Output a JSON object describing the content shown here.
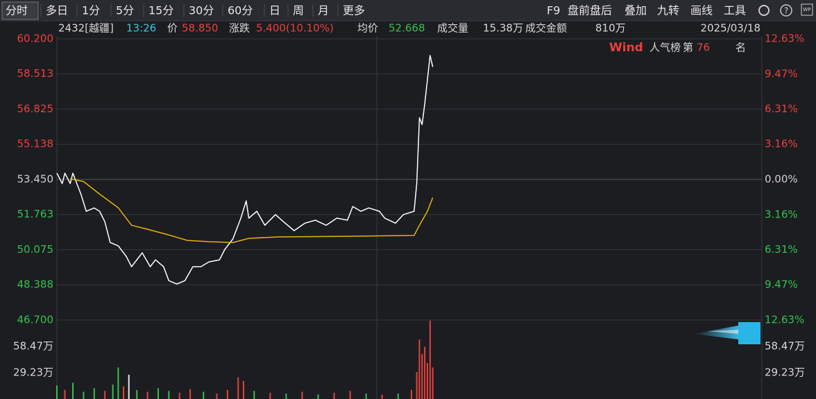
{
  "toolbar": {
    "tabs": [
      "分时",
      "多日",
      "1分",
      "5分",
      "15分",
      "30分",
      "60分",
      "日",
      "周",
      "月",
      "更多"
    ],
    "tools": [
      "F9",
      "盘前盘后",
      "叠加",
      "九转",
      "画线",
      "工具"
    ]
  },
  "info": {
    "code": "2432[越疆]",
    "time": "13:26",
    "price_label": "价",
    "price": "58.850",
    "change_label": "涨跌",
    "change": "5.400(10.10%)",
    "avg_label": "均价",
    "avg": "52.668",
    "volume_label": "成交量",
    "volume": "15.38万",
    "amount_label": "成交金额",
    "amount": "810万",
    "date": "2025/03/18"
  },
  "rank": {
    "brand": "Wind",
    "name": "人气榜",
    "prefix": "第",
    "rank": "76",
    "suffix": "名"
  },
  "chart_data": [
    {
      "type": "line",
      "xlim": [
        0,
        240
      ],
      "ylim": [
        46.7,
        60.2
      ],
      "yticks": [
        {
          "value": 60.2,
          "label": "60.200"
        },
        {
          "value": 58.513,
          "label": "58.513"
        },
        {
          "value": 56.825,
          "label": "56.825"
        },
        {
          "value": 55.138,
          "label": "55.138"
        },
        {
          "value": 53.45,
          "label": "53.450"
        },
        {
          "value": 51.763,
          "label": "51.763"
        },
        {
          "value": 50.075,
          "label": "50.075"
        },
        {
          "value": 48.388,
          "label": "48.388"
        },
        {
          "value": 46.7,
          "label": "46.700"
        }
      ],
      "y2lim": [
        -12.63,
        12.63
      ],
      "y2ticks": [
        {
          "value": 12.63,
          "label": "12.63%"
        },
        {
          "value": 9.47,
          "label": "9.47%"
        },
        {
          "value": 6.31,
          "label": "6.31%"
        },
        {
          "value": 3.16,
          "label": "3.16%"
        },
        {
          "value": 0,
          "label": "0.00%"
        },
        {
          "value": -3.16,
          "label": "3.16%"
        },
        {
          "value": -6.31,
          "label": "6.31%"
        },
        {
          "value": -9.47,
          "label": "9.47%"
        },
        {
          "value": -12.63,
          "label": "12.63%"
        }
      ],
      "grid": true,
      "up_color": "#e8413c",
      "down_color": "#35c04f",
      "series": [
        {
          "color": "#ffffff",
          "x": [
            0,
            2,
            3,
            5,
            6,
            8,
            9,
            11,
            14,
            16,
            18,
            20,
            23,
            26,
            28,
            31,
            32,
            35,
            37,
            40,
            42,
            45,
            48,
            51,
            54,
            57,
            61,
            63,
            66,
            69,
            71,
            72,
            75,
            78,
            82,
            85,
            89,
            93,
            97,
            101,
            105,
            109,
            111,
            114,
            117,
            121,
            123,
            127,
            130,
            134,
            135,
            136,
            137,
            138,
            139,
            140,
            141
          ],
          "values": [
            53.75,
            53.25,
            53.75,
            53.25,
            53.75,
            53.08,
            52.75,
            51.92,
            52.08,
            51.92,
            51.42,
            50.42,
            50.26,
            49.76,
            49.26,
            49.76,
            49.93,
            49.26,
            49.59,
            49.26,
            48.59,
            48.43,
            48.59,
            49.26,
            49.26,
            49.49,
            49.59,
            50.09,
            50.59,
            51.59,
            52.42,
            51.59,
            51.92,
            51.25,
            51.76,
            51.42,
            50.99,
            51.35,
            51.49,
            51.25,
            51.59,
            51.49,
            52.15,
            51.92,
            52.08,
            51.92,
            51.59,
            51.35,
            51.76,
            51.92,
            53.25,
            56.41,
            56.08,
            57.07,
            58.24,
            59.4,
            58.85
          ]
        },
        {
          "color": "#e8b400",
          "x": [
            5,
            10,
            16,
            23,
            28,
            33,
            41,
            49,
            57,
            66,
            72,
            83,
            109,
            134,
            136,
            139,
            141
          ],
          "values": [
            53.48,
            53.35,
            52.75,
            52.09,
            51.25,
            51.09,
            50.82,
            50.52,
            50.46,
            50.42,
            50.62,
            50.69,
            50.72,
            50.76,
            51.25,
            51.92,
            52.58
          ]
        }
      ]
    },
    {
      "type": "bar",
      "xlim": [
        0,
        240
      ],
      "ylim": [
        0,
        87.7
      ],
      "yticks": [
        {
          "value": 58.47,
          "label": "58.47万"
        },
        {
          "value": 29.23,
          "label": "29.23万"
        }
      ],
      "grid": false,
      "x": [
        0,
        3,
        6,
        10,
        14,
        18,
        21,
        23,
        25,
        27,
        30,
        34,
        38,
        42,
        46,
        50,
        55,
        60,
        64,
        68,
        70,
        74,
        80,
        86,
        92,
        98,
        104,
        110,
        116,
        122,
        128,
        133,
        135,
        136,
        137,
        138,
        139,
        140,
        141
      ],
      "values": [
        15,
        10,
        18,
        8,
        12,
        9,
        16,
        35,
        14,
        27,
        10,
        8,
        12,
        9,
        7,
        11,
        8,
        6,
        10,
        24,
        20,
        9,
        7,
        6,
        8,
        5,
        7,
        9,
        6,
        5,
        6,
        10,
        30,
        66,
        50,
        58,
        40,
        87,
        35
      ],
      "colors": [
        "#35c04f",
        "#e8413c",
        "#35c04f",
        "#35c04f",
        "#35c04f",
        "#e8413c",
        "#35c04f",
        "#35c04f",
        "#e8413c",
        "#e6e6e6",
        "#35c04f",
        "#e8413c",
        "#35c04f",
        "#35c04f",
        "#e8413c",
        "#e8413c",
        "#35c04f",
        "#e8413c",
        "#e8413c",
        "#e8413c",
        "#e8413c",
        "#35c04f",
        "#e8413c",
        "#35c04f",
        "#e8413c",
        "#35c04f",
        "#e8413c",
        "#e8413c",
        "#35c04f",
        "#e8413c",
        "#35c04f",
        "#e8413c",
        "#e8413c",
        "#e8413c",
        "#e8413c",
        "#e8413c",
        "#e8413c",
        "#e8413c",
        "#e8413c"
      ]
    }
  ]
}
